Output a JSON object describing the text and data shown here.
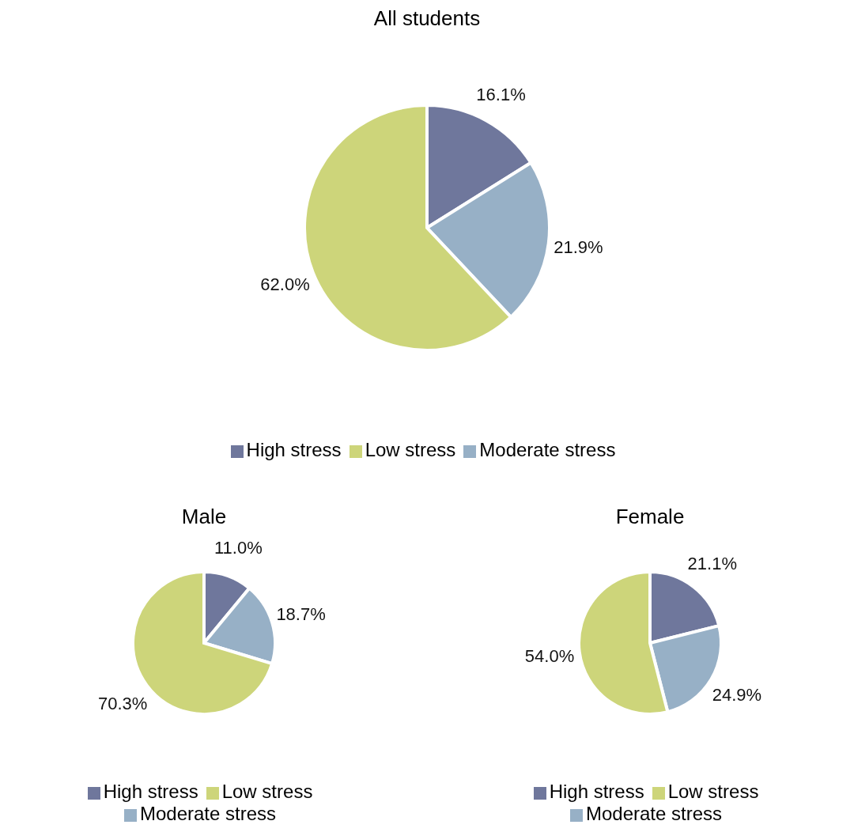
{
  "chart_data": [
    {
      "type": "pie",
      "title": "All students",
      "categories": [
        "High stress",
        "Moderate stress",
        "Low stress"
      ],
      "values": [
        16.1,
        21.9,
        62.0
      ],
      "value_labels": [
        "16.1%",
        "21.9%",
        "62.0%"
      ],
      "colors": [
        "#6f779c",
        "#97b0c6",
        "#cdd57a"
      ],
      "legend": "bottom"
    },
    {
      "type": "pie",
      "title": "Male",
      "categories": [
        "High stress",
        "Moderate stress",
        "Low stress"
      ],
      "values": [
        11.0,
        18.7,
        70.3
      ],
      "value_labels": [
        "11.0%",
        "18.7%",
        "70.3%"
      ],
      "colors": [
        "#6f779c",
        "#97b0c6",
        "#cdd57a"
      ],
      "legend": "bottom"
    },
    {
      "type": "pie",
      "title": "Female",
      "categories": [
        "High stress",
        "Moderate stress",
        "Low stress"
      ],
      "values": [
        21.1,
        24.9,
        54.0
      ],
      "value_labels": [
        "21.1%",
        "24.9%",
        "54.0%"
      ],
      "colors": [
        "#6f779c",
        "#97b0c6",
        "#cdd57a"
      ],
      "legend": "bottom"
    }
  ]
}
